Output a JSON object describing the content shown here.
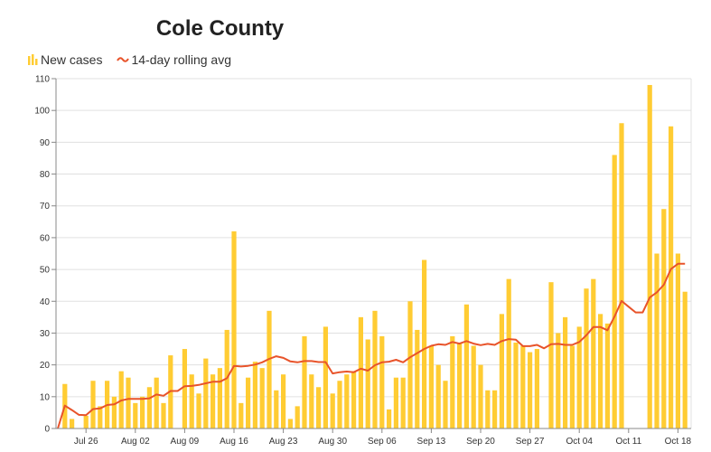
{
  "title": "Cole County",
  "legend": {
    "bars_label": "New cases",
    "line_label": "14-day rolling avg",
    "bars_icon": "bar-chart-icon",
    "line_icon": "line-wave-icon"
  },
  "colors": {
    "bar": "#FFCC33",
    "line": "#E8532A",
    "grid": "#E0E0E0",
    "axis": "#888888",
    "title": "#222222"
  },
  "chart_data": {
    "type": "bar",
    "title": "Cole County",
    "xlabel": "",
    "ylabel": "",
    "ylim": [
      0,
      110
    ],
    "yticks": [
      0,
      10,
      20,
      30,
      40,
      50,
      60,
      70,
      80,
      90,
      100,
      110
    ],
    "xtick_labels": [
      "Jul 26",
      "Aug 02",
      "Aug 09",
      "Aug 16",
      "Aug 23",
      "Aug 30",
      "Sep 06",
      "Sep 13",
      "Sep 20",
      "Sep 27",
      "Oct 04",
      "Oct 11",
      "Oct 18"
    ],
    "xtick_indices": [
      4,
      11,
      18,
      25,
      32,
      39,
      46,
      53,
      60,
      67,
      74,
      81,
      88
    ],
    "grid": true,
    "legend_position": "top-left",
    "categories": [
      "Jul 22",
      "Jul 23",
      "Jul 24",
      "Jul 25",
      "Jul 26",
      "Jul 27",
      "Jul 28",
      "Jul 29",
      "Jul 30",
      "Jul 31",
      "Aug 01",
      "Aug 02",
      "Aug 03",
      "Aug 04",
      "Aug 05",
      "Aug 06",
      "Aug 07",
      "Aug 08",
      "Aug 09",
      "Aug 10",
      "Aug 11",
      "Aug 12",
      "Aug 13",
      "Aug 14",
      "Aug 15",
      "Aug 16",
      "Aug 17",
      "Aug 18",
      "Aug 19",
      "Aug 20",
      "Aug 21",
      "Aug 22",
      "Aug 23",
      "Aug 24",
      "Aug 25",
      "Aug 26",
      "Aug 27",
      "Aug 28",
      "Aug 29",
      "Aug 30",
      "Aug 31",
      "Sep 01",
      "Sep 02",
      "Sep 03",
      "Sep 04",
      "Sep 05",
      "Sep 06",
      "Sep 07",
      "Sep 08",
      "Sep 09",
      "Sep 10",
      "Sep 11",
      "Sep 12",
      "Sep 13",
      "Sep 14",
      "Sep 15",
      "Sep 16",
      "Sep 17",
      "Sep 18",
      "Sep 19",
      "Sep 20",
      "Sep 21",
      "Sep 22",
      "Sep 23",
      "Sep 24",
      "Sep 25",
      "Sep 26",
      "Sep 27",
      "Sep 28",
      "Sep 29",
      "Sep 30",
      "Oct 01",
      "Oct 02",
      "Oct 03",
      "Oct 04",
      "Oct 05",
      "Oct 06",
      "Oct 07",
      "Oct 08",
      "Oct 09",
      "Oct 10",
      "Oct 11",
      "Oct 12",
      "Oct 13",
      "Oct 14",
      "Oct 15",
      "Oct 16",
      "Oct 17",
      "Oct 18",
      "Oct 19"
    ],
    "series": [
      {
        "name": "New cases",
        "type": "bar",
        "values": [
          0,
          14,
          3,
          0,
          4,
          15,
          7,
          15,
          10,
          18,
          16,
          8,
          10,
          13,
          16,
          8,
          23,
          0,
          25,
          17,
          11,
          22,
          17,
          19,
          31,
          62,
          8,
          16,
          21,
          19,
          37,
          12,
          17,
          3,
          7,
          29,
          17,
          13,
          32,
          11,
          15,
          17,
          18,
          35,
          28,
          37,
          29,
          6,
          16,
          16,
          40,
          31,
          53,
          26,
          20,
          15,
          29,
          27,
          39,
          26,
          20,
          12,
          12,
          36,
          47,
          27,
          26,
          24,
          25,
          0,
          46,
          30,
          35,
          26,
          32,
          44,
          47,
          36,
          33,
          86,
          96,
          0,
          0,
          0,
          108,
          55,
          69,
          95,
          55,
          43
        ]
      },
      {
        "name": "14-day rolling avg",
        "type": "line",
        "values": [
          0,
          7.2,
          5.8,
          4.3,
          4.2,
          6.1,
          6.3,
          7.4,
          7.6,
          8.8,
          9.3,
          9.3,
          9.3,
          9.5,
          10.7,
          10.3,
          11.8,
          11.8,
          13.3,
          13.4,
          13.7,
          14.2,
          14.7,
          14.7,
          15.8,
          19.7,
          19.5,
          19.7,
          20.1,
          20.8,
          21.9,
          22.7,
          22.2,
          21.1,
          20.8,
          21.2,
          21.2,
          20.9,
          20.9,
          17.3,
          17.7,
          17.9,
          17.7,
          18.8,
          18.2,
          19.9,
          20.8,
          21.0,
          21.6,
          20.8,
          22.4,
          23.7,
          25.0,
          26.0,
          26.5,
          26.3,
          27.2,
          26.7,
          27.5,
          26.7,
          26.2,
          26.6,
          26.3,
          27.5,
          28.1,
          27.9,
          25.9,
          25.9,
          26.3,
          25.2,
          26.5,
          26.6,
          26.3,
          26.3,
          27.2,
          29.3,
          31.9,
          31.9,
          30.9,
          35.2,
          40.1,
          38.3,
          36.5,
          36.5,
          41.2,
          42.8,
          45.2,
          50.1,
          51.8,
          51.8
        ]
      }
    ]
  }
}
